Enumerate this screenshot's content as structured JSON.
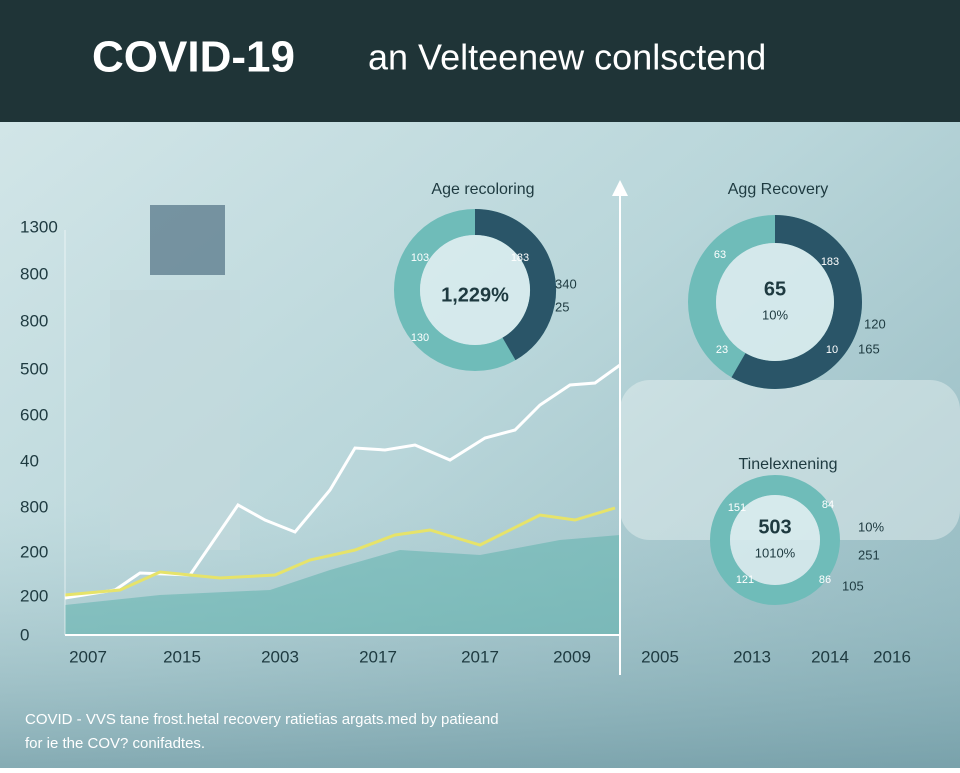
{
  "header": {
    "title_bold": "COVID-19",
    "title_rest": "an Velteenew conlsctend"
  },
  "y_axis_labels": [
    "1300",
    "800",
    "800",
    "500",
    "600",
    "40",
    "800",
    "200",
    "200",
    "0"
  ],
  "x_axis_labels": [
    "2007",
    "2015",
    "2003",
    "2017",
    "2017",
    "2009",
    "2005",
    "2013",
    "2014",
    "2016"
  ],
  "donuts": [
    {
      "title": "Age recoloring",
      "center": "1,229%",
      "ring_labels": [
        "103",
        "183",
        "130"
      ],
      "side_labels": [
        "340",
        "25"
      ]
    },
    {
      "title": "Agg Recovery",
      "center": "65",
      "center_sub": "10%",
      "ring_labels": [
        "63",
        "183",
        "23",
        "10"
      ],
      "side_labels": [
        "120",
        "165"
      ]
    },
    {
      "title": "Tinelexnening",
      "center": "503",
      "center_sub": "1010%",
      "ring_labels": [
        "151",
        "84",
        "121",
        "86"
      ],
      "side_labels": [
        "10%",
        "251",
        "105"
      ]
    }
  ],
  "footer": [
    "COVID - VVS tane frost.hetal recovery ratietias argats.med by patieand",
    "for ie the COV? conifadtes."
  ]
}
